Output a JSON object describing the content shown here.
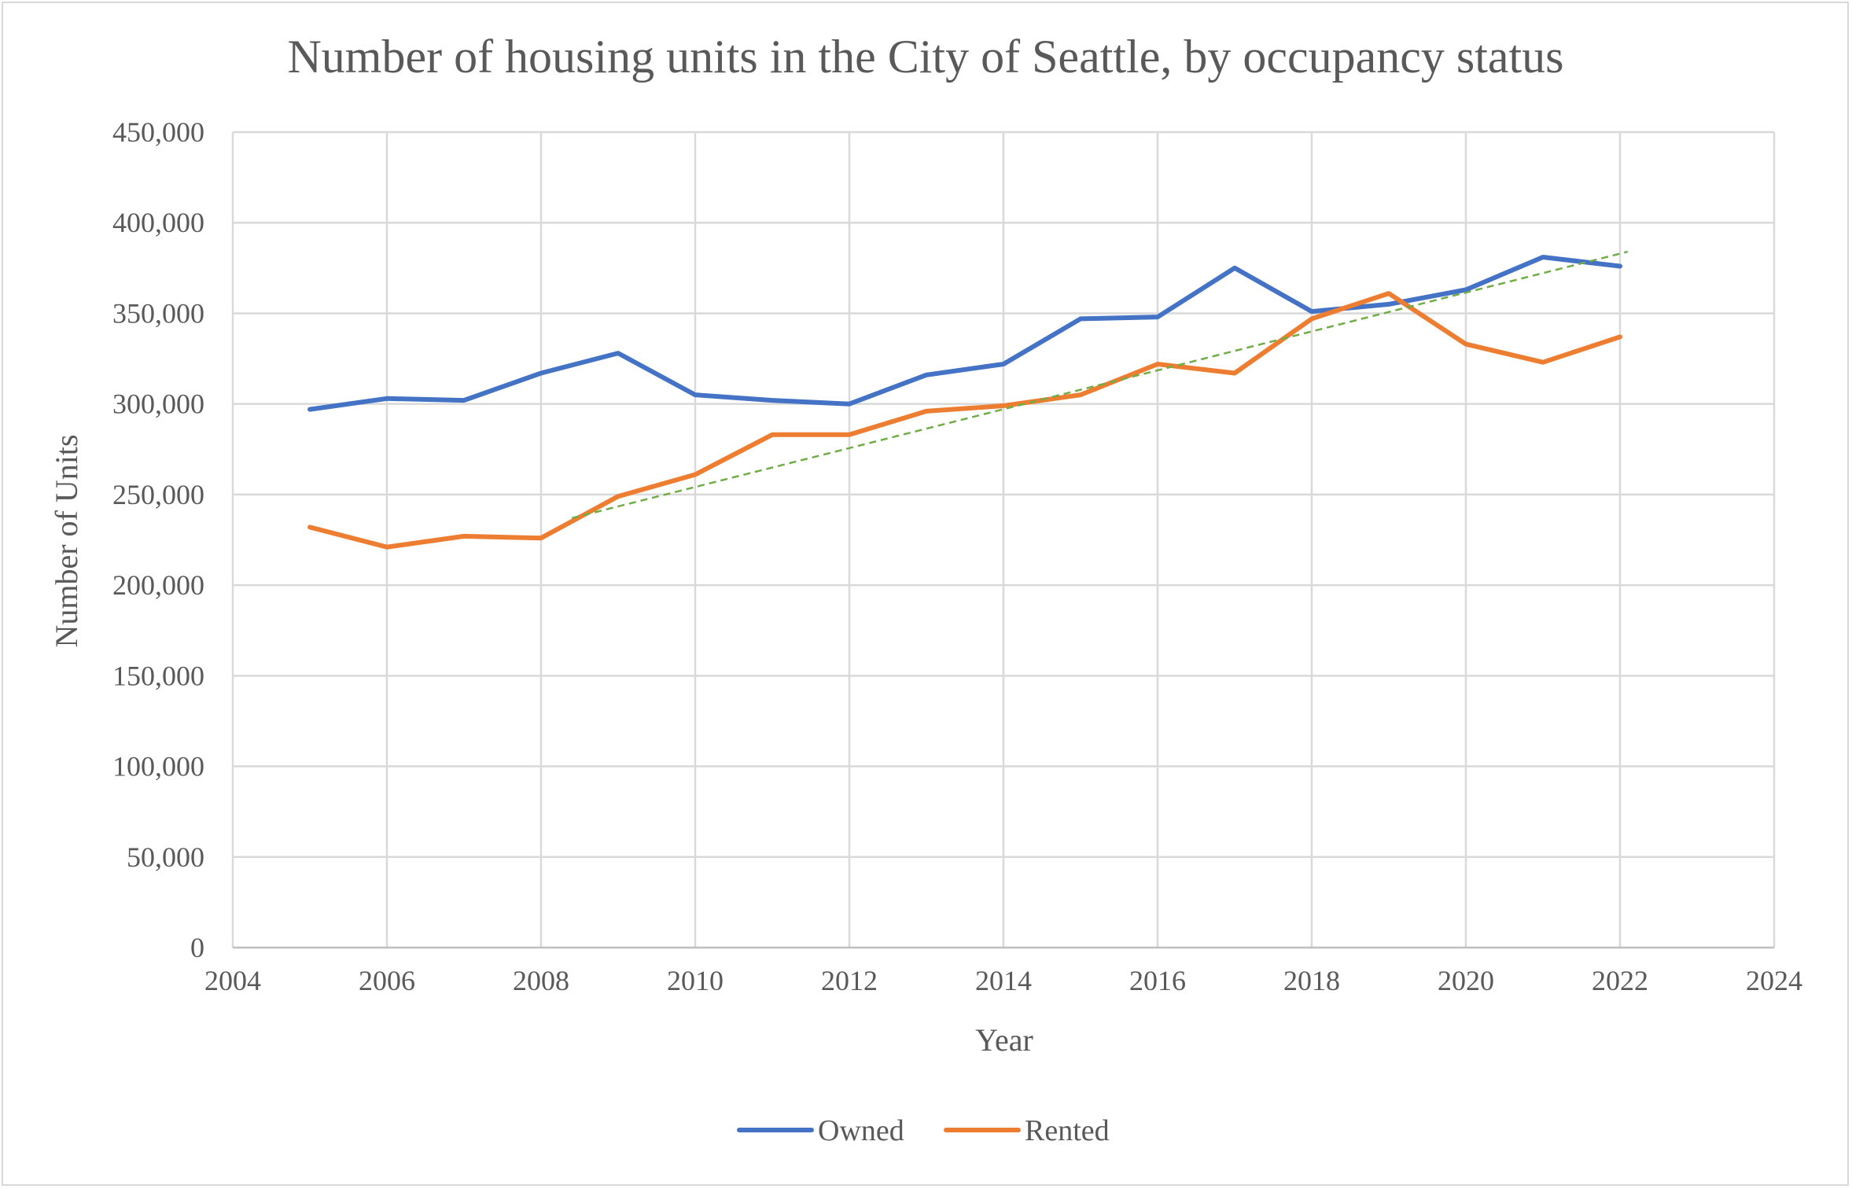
{
  "chart_data": {
    "type": "line",
    "title": "Number of housing units in the City of Seattle, by occupancy status",
    "xlabel": "Year",
    "ylabel": "Number of Units",
    "xlim": [
      2004,
      2024
    ],
    "ylim": [
      0,
      450000
    ],
    "x_ticks": [
      "2004",
      "2006",
      "2008",
      "2010",
      "2012",
      "2014",
      "2016",
      "2018",
      "2020",
      "2022",
      "2024"
    ],
    "y_ticks": [
      "0",
      "50,000",
      "100,000",
      "150,000",
      "200,000",
      "250,000",
      "300,000",
      "350,000",
      "400,000",
      "450,000"
    ],
    "x_tick_values": [
      2004,
      2006,
      2008,
      2010,
      2012,
      2014,
      2016,
      2018,
      2020,
      2022,
      2024
    ],
    "y_tick_values": [
      0,
      50000,
      100000,
      150000,
      200000,
      250000,
      300000,
      350000,
      400000,
      450000
    ],
    "grid": true,
    "legend_position": "bottom",
    "x": [
      2005,
      2006,
      2007,
      2008,
      2009,
      2010,
      2011,
      2012,
      2013,
      2014,
      2015,
      2016,
      2017,
      2018,
      2019,
      2020,
      2021,
      2022
    ],
    "series": [
      {
        "name": "Owned",
        "color": "#4472c4",
        "values": [
          297000,
          303000,
          302000,
          317000,
          328000,
          305000,
          302000,
          300000,
          316000,
          322000,
          347000,
          348000,
          375000,
          351000,
          355000,
          363000,
          381000,
          376000
        ]
      },
      {
        "name": "Rented",
        "color": "#ed7d31",
        "values": [
          232000,
          221000,
          227000,
          226000,
          249000,
          261000,
          283000,
          283000,
          296000,
          299000,
          305000,
          322000,
          317000,
          347000,
          361000,
          333000,
          323000,
          337000
        ]
      }
    ],
    "trendline": {
      "style": "dashed",
      "color": "#70ad47",
      "x": [
        2008.4,
        2022.1
      ],
      "values": [
        237000,
        384000
      ]
    }
  }
}
